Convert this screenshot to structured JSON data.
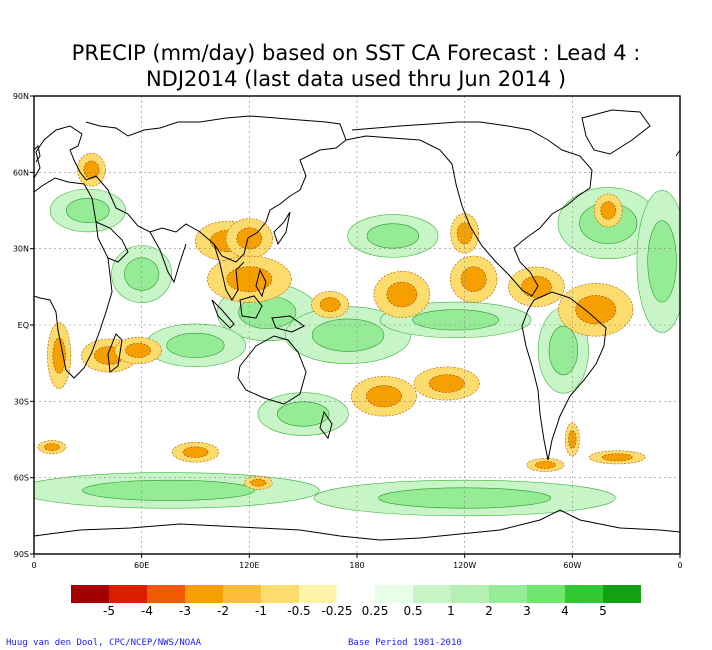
{
  "title_line1": "PRECIP (mm/day) based on SST CA Forecast : Lead 4 :",
  "title_line2": "NDJ2014 (last data used thru Jun 2014 )",
  "lat_labels": [
    "90N",
    "60N",
    "30N",
    "EQ",
    "30S",
    "60S",
    "90S"
  ],
  "lon_labels": [
    "0",
    "60E",
    "120E",
    "180",
    "120W",
    "60W",
    "0"
  ],
  "colorbar": {
    "colors": [
      "#a50000",
      "#dc1e00",
      "#f05a00",
      "#f5a000",
      "#fabe3c",
      "#fddc6e",
      "#fff5aa",
      "#ffffff",
      "#e6ffe6",
      "#c8f5c8",
      "#b4f0b4",
      "#96eb96",
      "#6ee66e",
      "#32c832",
      "#14a014"
    ],
    "labels": [
      "-5",
      "-4",
      "-3",
      "-2",
      "-1",
      "-0.5",
      "-0.25",
      "0.25",
      "0.5",
      "1",
      "2",
      "3",
      "4",
      "5"
    ]
  },
  "credit_left": "Huug van den Dool, CPC/NCEP/NWS/NOAA",
  "credit_right": "Base Period 1981-2010",
  "colors": {
    "dry": "#f5a000",
    "dry_light": "#fddc6e",
    "wet_light": "#c8f5c8",
    "wet": "#96eb96",
    "wet_strong": "#32c832",
    "coast": "#000000",
    "grid": "#888888"
  },
  "map_data": {
    "lon_range": [
      0,
      360
    ],
    "lat_range": [
      -90,
      90
    ],
    "dry_areas": [
      {
        "lon": 108,
        "lat": 33,
        "rx": 14,
        "ry": 6
      },
      {
        "lon": 120,
        "lat": 34,
        "rx": 10,
        "ry": 6
      },
      {
        "lon": 120,
        "lat": 18,
        "rx": 18,
        "ry": 7
      },
      {
        "lon": 165,
        "lat": 8,
        "rx": 8,
        "ry": 4
      },
      {
        "lon": 205,
        "lat": 12,
        "rx": 12,
        "ry": 7
      },
      {
        "lon": 245,
        "lat": 18,
        "rx": 10,
        "ry": 7
      },
      {
        "lon": 280,
        "lat": 15,
        "rx": 12,
        "ry": 6
      },
      {
        "lon": 313,
        "lat": 6,
        "rx": 16,
        "ry": 8
      },
      {
        "lon": 14,
        "lat": -12,
        "rx": 5,
        "ry": 10
      },
      {
        "lon": 42,
        "lat": -12,
        "rx": 12,
        "ry": 5
      },
      {
        "lon": 58,
        "lat": -10,
        "rx": 10,
        "ry": 4
      },
      {
        "lon": 195,
        "lat": -28,
        "rx": 14,
        "ry": 6
      },
      {
        "lon": 230,
        "lat": -23,
        "rx": 14,
        "ry": 5
      },
      {
        "lon": 300,
        "lat": -45,
        "rx": 3,
        "ry": 5
      },
      {
        "lon": 32,
        "lat": 61,
        "rx": 6,
        "ry": 5
      },
      {
        "lon": 240,
        "lat": 36,
        "rx": 6,
        "ry": 6
      },
      {
        "lon": 320,
        "lat": 45,
        "rx": 6,
        "ry": 5
      },
      {
        "lon": 10,
        "lat": -48,
        "rx": 6,
        "ry": 2
      },
      {
        "lon": 90,
        "lat": -50,
        "rx": 10,
        "ry": 3
      },
      {
        "lon": 125,
        "lat": -62,
        "rx": 6,
        "ry": 2
      },
      {
        "lon": 285,
        "lat": -55,
        "rx": 8,
        "ry": 2
      },
      {
        "lon": 325,
        "lat": -52,
        "rx": 12,
        "ry": 2
      }
    ],
    "wet_areas": [
      {
        "lon": 30,
        "lat": 45,
        "rx": 15,
        "ry": 6
      },
      {
        "lon": 130,
        "lat": 5,
        "rx": 20,
        "ry": 8
      },
      {
        "lon": 175,
        "lat": -4,
        "rx": 25,
        "ry": 8
      },
      {
        "lon": 235,
        "lat": 2,
        "rx": 30,
        "ry": 5
      },
      {
        "lon": 320,
        "lat": 40,
        "rx": 20,
        "ry": 10
      },
      {
        "lon": 90,
        "lat": -8,
        "rx": 20,
        "ry": 6
      },
      {
        "lon": 75,
        "lat": -65,
        "rx": 60,
        "ry": 5
      },
      {
        "lon": 240,
        "lat": -68,
        "rx": 60,
        "ry": 5
      },
      {
        "lon": 350,
        "lat": 25,
        "rx": 10,
        "ry": 20
      },
      {
        "lon": 60,
        "lat": 20,
        "rx": 12,
        "ry": 8
      },
      {
        "lon": 200,
        "lat": 35,
        "rx": 18,
        "ry": 6
      },
      {
        "lon": 295,
        "lat": -10,
        "rx": 10,
        "ry": 12
      },
      {
        "lon": 150,
        "lat": -35,
        "rx": 18,
        "ry": 6
      }
    ]
  }
}
